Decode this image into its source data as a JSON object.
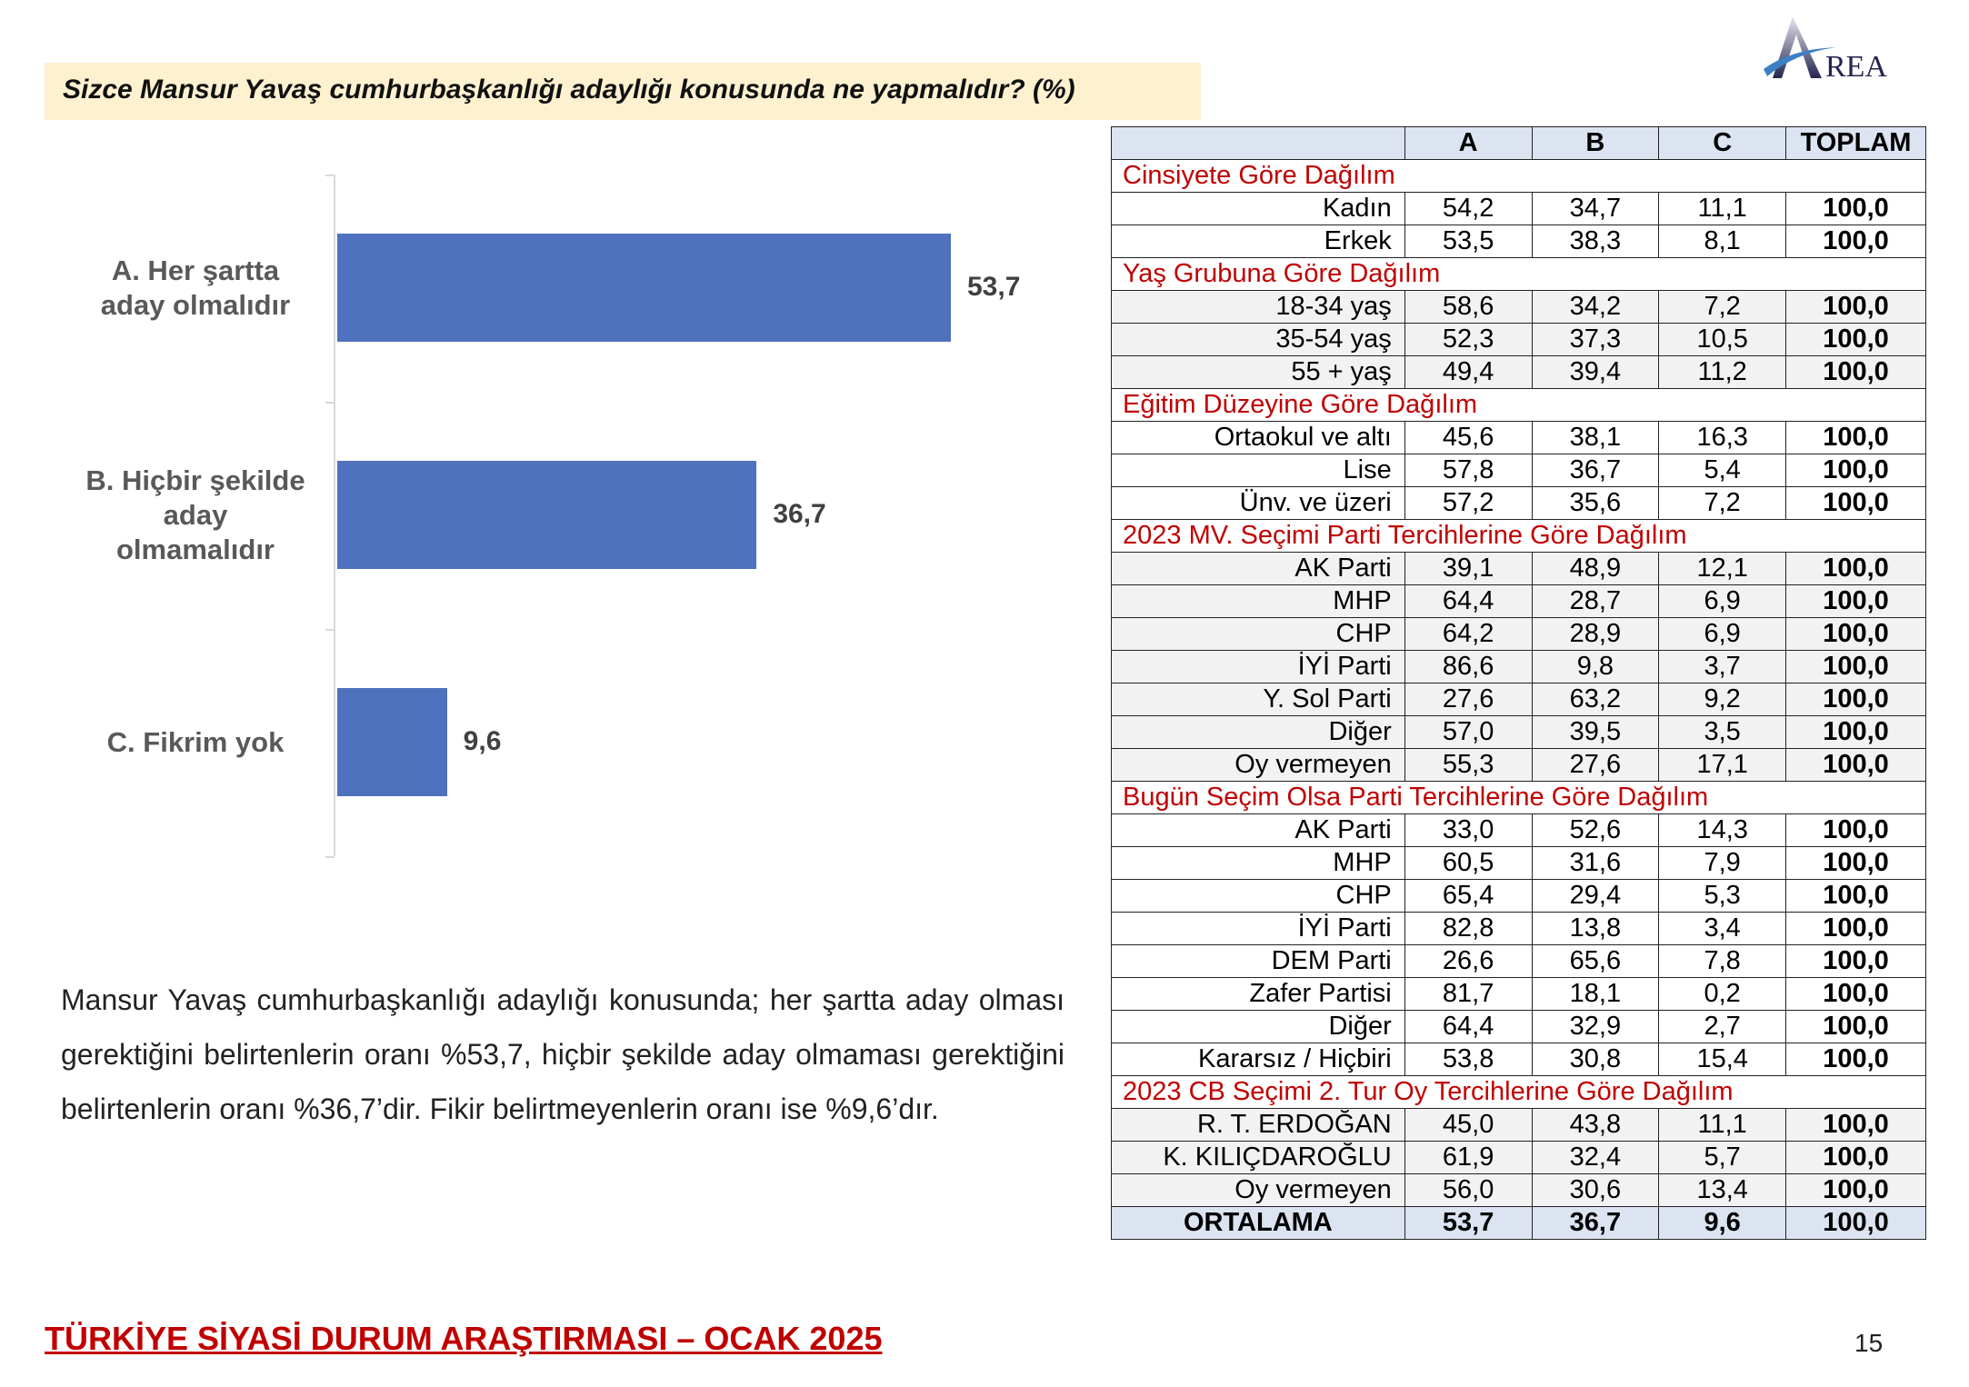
{
  "title": "Sizce Mansur Yavaş cumhurbaşkanlığı adaylığı konusunda ne yapmalıdır? (%)",
  "logo_text": "AREA",
  "chart_data": {
    "type": "bar",
    "orientation": "horizontal",
    "categories": [
      "A. Her şartta aday olmalıdır",
      "B. Hiçbir şekilde aday olmamalıdır",
      "C. Fikrim yok"
    ],
    "category_lines": [
      [
        "A. Her şartta",
        "aday olmalıdır"
      ],
      [
        "B. Hiçbir şekilde",
        "aday",
        "olmamalıdır"
      ],
      [
        "C. Fikrim yok"
      ]
    ],
    "values": [
      53.7,
      36.7,
      9.6
    ],
    "value_labels": [
      "53,7",
      "36,7",
      "9,6"
    ],
    "bar_color": "#4f72be",
    "xlim": [
      0,
      100
    ],
    "grid": false
  },
  "paragraph": "Mansur Yavaş cumhurbaşkanlığı adaylığı konusunda; her şartta aday olması gerektiğini belirtenlerin oranı %53,7, hiçbir şekilde aday olmaması gerektiğini belirtenlerin oranı %36,7’dir. Fikir belirtmeyenlerin oranı ise %9,6’dır.",
  "table": {
    "headers": [
      "",
      "A",
      "B",
      "C",
      "TOPLAM"
    ],
    "sections": [
      {
        "title": "Cinsiyete Göre Dağılım",
        "shaded": false,
        "rows": [
          [
            "Kadın",
            "54,2",
            "34,7",
            "11,1",
            "100,0"
          ],
          [
            "Erkek",
            "53,5",
            "38,3",
            "8,1",
            "100,0"
          ]
        ]
      },
      {
        "title": "Yaş Grubuna Göre Dağılım",
        "shaded": true,
        "rows": [
          [
            "18-34 yaş",
            "58,6",
            "34,2",
            "7,2",
            "100,0"
          ],
          [
            "35-54 yaş",
            "52,3",
            "37,3",
            "10,5",
            "100,0"
          ],
          [
            "55 + yaş",
            "49,4",
            "39,4",
            "11,2",
            "100,0"
          ]
        ]
      },
      {
        "title": "Eğitim Düzeyine Göre Dağılım",
        "shaded": false,
        "rows": [
          [
            "Ortaokul ve altı",
            "45,6",
            "38,1",
            "16,3",
            "100,0"
          ],
          [
            "Lise",
            "57,8",
            "36,7",
            "5,4",
            "100,0"
          ],
          [
            "Ünv. ve üzeri",
            "57,2",
            "35,6",
            "7,2",
            "100,0"
          ]
        ]
      },
      {
        "title": "2023 MV. Seçimi Parti Tercihlerine Göre Dağılım",
        "shaded": true,
        "rows": [
          [
            "AK Parti",
            "39,1",
            "48,9",
            "12,1",
            "100,0"
          ],
          [
            "MHP",
            "64,4",
            "28,7",
            "6,9",
            "100,0"
          ],
          [
            "CHP",
            "64,2",
            "28,9",
            "6,9",
            "100,0"
          ],
          [
            "İYİ Parti",
            "86,6",
            "9,8",
            "3,7",
            "100,0"
          ],
          [
            "Y. Sol Parti",
            "27,6",
            "63,2",
            "9,2",
            "100,0"
          ],
          [
            "Diğer",
            "57,0",
            "39,5",
            "3,5",
            "100,0"
          ],
          [
            "Oy vermeyen",
            "55,3",
            "27,6",
            "17,1",
            "100,0"
          ]
        ]
      },
      {
        "title": "Bugün Seçim Olsa Parti Tercihlerine Göre Dağılım",
        "shaded": false,
        "rows": [
          [
            "AK Parti",
            "33,0",
            "52,6",
            "14,3",
            "100,0"
          ],
          [
            "MHP",
            "60,5",
            "31,6",
            "7,9",
            "100,0"
          ],
          [
            "CHP",
            "65,4",
            "29,4",
            "5,3",
            "100,0"
          ],
          [
            "İYİ Parti",
            "82,8",
            "13,8",
            "3,4",
            "100,0"
          ],
          [
            "DEM Parti",
            "26,6",
            "65,6",
            "7,8",
            "100,0"
          ],
          [
            "Zafer Partisi",
            "81,7",
            "18,1",
            "0,2",
            "100,0"
          ],
          [
            "Diğer",
            "64,4",
            "32,9",
            "2,7",
            "100,0"
          ],
          [
            "Kararsız / Hiçbiri",
            "53,8",
            "30,8",
            "15,4",
            "100,0"
          ]
        ]
      },
      {
        "title": "2023 CB Seçimi 2. Tur Oy Tercihlerine Göre Dağılım",
        "shaded": true,
        "rows": [
          [
            "R. T. ERDOĞAN",
            "45,0",
            "43,8",
            "11,1",
            "100,0"
          ],
          [
            "K. KILIÇDAROĞLU",
            "61,9",
            "32,4",
            "5,7",
            "100,0"
          ],
          [
            "Oy vermeyen",
            "56,0",
            "30,6",
            "13,4",
            "100,0"
          ]
        ]
      }
    ],
    "average": [
      "ORTALAMA",
      "53,7",
      "36,7",
      "9,6",
      "100,0"
    ]
  },
  "footer": "TÜRKİYE SİYASİ DURUM ARAŞTIRMASI – OCAK 2025",
  "page_number": "15",
  "colors": {
    "accent_red": "#c00000",
    "bar_blue": "#4f72be",
    "banner_bg": "#fdf1d0",
    "header_bg": "#dce3f1"
  }
}
